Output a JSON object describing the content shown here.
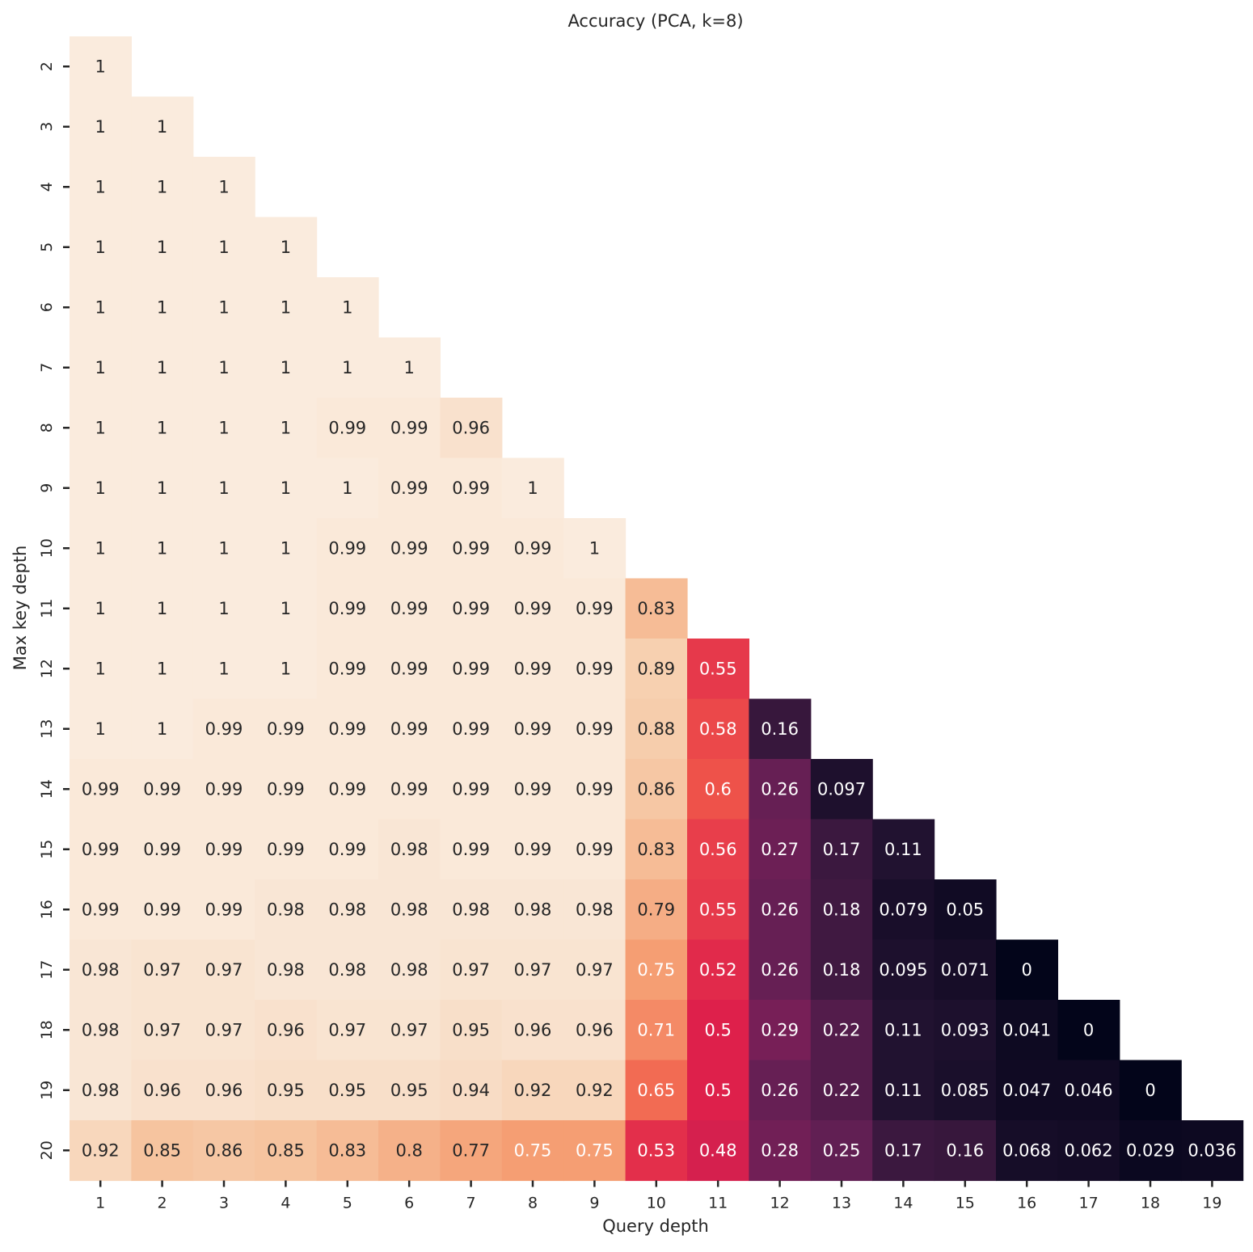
{
  "chart_data": {
    "type": "heatmap",
    "title": "Accuracy (PCA, k=8)",
    "xlabel": "Query depth",
    "ylabel": "Max key depth",
    "x_categories": [
      "1",
      "2",
      "3",
      "4",
      "5",
      "6",
      "7",
      "8",
      "9",
      "10",
      "11",
      "12",
      "13",
      "14",
      "15",
      "16",
      "17",
      "18",
      "19"
    ],
    "y_categories": [
      "2",
      "3",
      "4",
      "5",
      "6",
      "7",
      "8",
      "9",
      "10",
      "11",
      "12",
      "13",
      "14",
      "15",
      "16",
      "17",
      "18",
      "19",
      "20"
    ],
    "value_range": [
      0,
      1
    ],
    "colormap": "rocket",
    "grid": false,
    "legend": "none",
    "rows": [
      [
        "1"
      ],
      [
        "1",
        "1"
      ],
      [
        "1",
        "1",
        "1"
      ],
      [
        "1",
        "1",
        "1",
        "1"
      ],
      [
        "1",
        "1",
        "1",
        "1",
        "1"
      ],
      [
        "1",
        "1",
        "1",
        "1",
        "1",
        "1"
      ],
      [
        "1",
        "1",
        "1",
        "1",
        "0.99",
        "0.99",
        "0.96"
      ],
      [
        "1",
        "1",
        "1",
        "1",
        "1",
        "0.99",
        "0.99",
        "1"
      ],
      [
        "1",
        "1",
        "1",
        "1",
        "0.99",
        "0.99",
        "0.99",
        "0.99",
        "1"
      ],
      [
        "1",
        "1",
        "1",
        "1",
        "0.99",
        "0.99",
        "0.99",
        "0.99",
        "0.99",
        "0.83"
      ],
      [
        "1",
        "1",
        "1",
        "1",
        "0.99",
        "0.99",
        "0.99",
        "0.99",
        "0.99",
        "0.89",
        "0.55"
      ],
      [
        "1",
        "1",
        "0.99",
        "0.99",
        "0.99",
        "0.99",
        "0.99",
        "0.99",
        "0.99",
        "0.88",
        "0.58",
        "0.16"
      ],
      [
        "0.99",
        "0.99",
        "0.99",
        "0.99",
        "0.99",
        "0.99",
        "0.99",
        "0.99",
        "0.99",
        "0.86",
        "0.6",
        "0.26",
        "0.097"
      ],
      [
        "0.99",
        "0.99",
        "0.99",
        "0.99",
        "0.99",
        "0.98",
        "0.99",
        "0.99",
        "0.99",
        "0.83",
        "0.56",
        "0.27",
        "0.17",
        "0.11"
      ],
      [
        "0.99",
        "0.99",
        "0.99",
        "0.98",
        "0.98",
        "0.98",
        "0.98",
        "0.98",
        "0.98",
        "0.79",
        "0.55",
        "0.26",
        "0.18",
        "0.079",
        "0.05"
      ],
      [
        "0.98",
        "0.97",
        "0.97",
        "0.98",
        "0.98",
        "0.98",
        "0.97",
        "0.97",
        "0.97",
        "0.75",
        "0.52",
        "0.26",
        "0.18",
        "0.095",
        "0.071",
        "0"
      ],
      [
        "0.98",
        "0.97",
        "0.97",
        "0.96",
        "0.97",
        "0.97",
        "0.95",
        "0.96",
        "0.96",
        "0.71",
        "0.5",
        "0.29",
        "0.22",
        "0.11",
        "0.093",
        "0.041",
        "0"
      ],
      [
        "0.98",
        "0.96",
        "0.96",
        "0.95",
        "0.95",
        "0.95",
        "0.94",
        "0.92",
        "0.92",
        "0.65",
        "0.5",
        "0.26",
        "0.22",
        "0.11",
        "0.085",
        "0.047",
        "0.046",
        "0"
      ],
      [
        "0.92",
        "0.85",
        "0.86",
        "0.85",
        "0.83",
        "0.8",
        "0.77",
        "0.75",
        "0.75",
        "0.53",
        "0.48",
        "0.28",
        "0.25",
        "0.17",
        "0.16",
        "0.068",
        "0.062",
        "0.029",
        "0.036"
      ]
    ]
  }
}
